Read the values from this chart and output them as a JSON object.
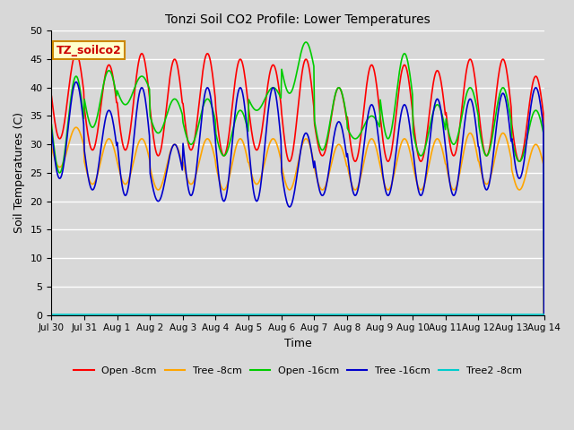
{
  "title": "Tonzi Soil CO2 Profile: Lower Temperatures",
  "xlabel": "Time",
  "ylabel": "Soil Temperatures (C)",
  "ylim": [
    0,
    50
  ],
  "yticks": [
    0,
    5,
    10,
    15,
    20,
    25,
    30,
    35,
    40,
    45,
    50
  ],
  "fig_bg_color": "#d8d8d8",
  "plot_bg_color": "#d8d8d8",
  "annotation_text": "TZ_soilco2",
  "annotation_bg": "#ffffcc",
  "annotation_border": "#cc8800",
  "annotation_color": "#cc0000",
  "series": [
    {
      "label": "Open -8cm",
      "color": "#ff0000",
      "lw": 1.2
    },
    {
      "label": "Tree -8cm",
      "color": "#ffa500",
      "lw": 1.2
    },
    {
      "label": "Open -16cm",
      "color": "#00cc00",
      "lw": 1.2
    },
    {
      "label": "Tree -16cm",
      "color": "#0000cc",
      "lw": 1.2
    },
    {
      "label": "Tree2 -8cm",
      "color": "#00cccc",
      "lw": 1.2
    }
  ],
  "x_tick_labels": [
    "Jul 30",
    "Jul 31",
    "Aug 1",
    "Aug 2",
    "Aug 3",
    "Aug 4",
    "Aug 5",
    "Aug 6",
    "Aug 7",
    "Aug 8",
    "Aug 9",
    "Aug 10",
    "Aug 11",
    "Aug 12",
    "Aug 13",
    "Aug 14"
  ],
  "n_days": 15,
  "points_per_day": 48
}
